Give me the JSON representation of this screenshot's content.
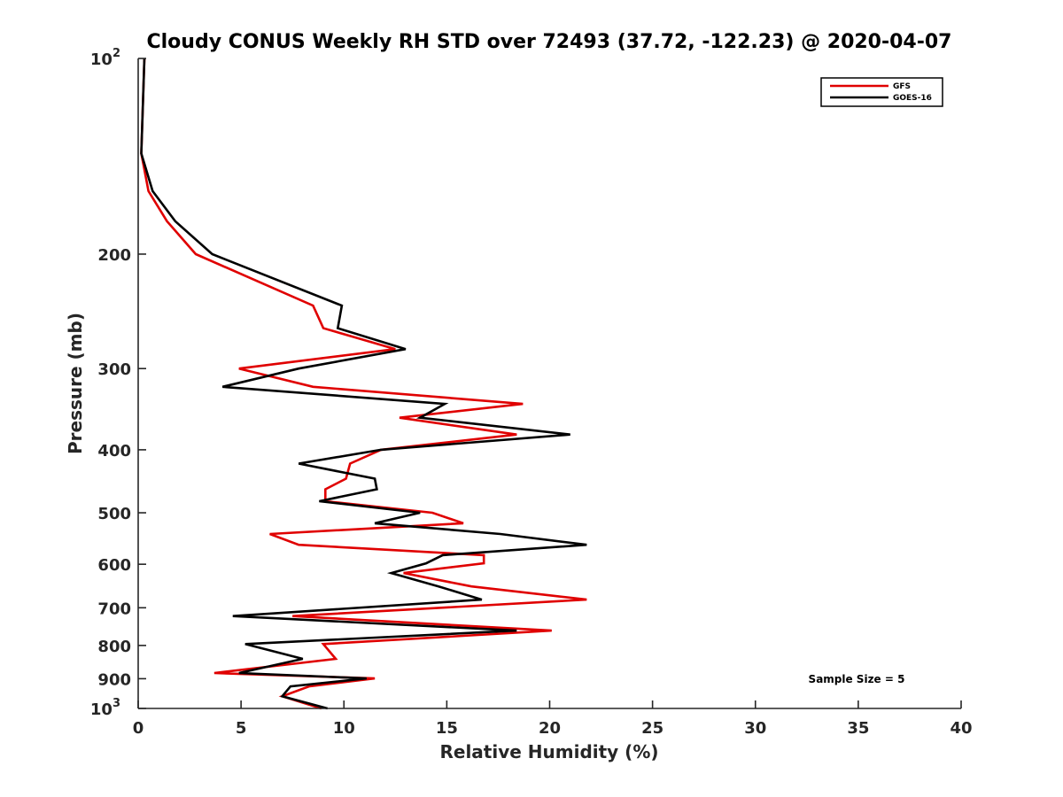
{
  "chart_data": {
    "type": "line",
    "title": "Cloudy CONUS Weekly RH STD over 72493 (37.72, -122.23) @ 2020-04-07",
    "xlabel": "Relative Humidity (%)",
    "ylabel": "Pressure (mb)",
    "xlim": [
      0,
      40
    ],
    "ylim": [
      100,
      1000
    ],
    "yscale": "log",
    "yaxis_reversed": true,
    "grid": false,
    "xticks": [
      0,
      5,
      10,
      15,
      20,
      25,
      30,
      35,
      40
    ],
    "xtick_labels": [
      "0",
      "5",
      "10",
      "15",
      "20",
      "25",
      "30",
      "35",
      "40"
    ],
    "yticks": [
      100,
      200,
      300,
      400,
      500,
      600,
      700,
      800,
      900,
      1000
    ],
    "ytick_labels": [
      {
        "base": "10",
        "sup": "2"
      },
      {
        "base": "200",
        "sup": ""
      },
      {
        "base": "300",
        "sup": ""
      },
      {
        "base": "400",
        "sup": ""
      },
      {
        "base": "500",
        "sup": ""
      },
      {
        "base": "600",
        "sup": ""
      },
      {
        "base": "700",
        "sup": ""
      },
      {
        "base": "800",
        "sup": ""
      },
      {
        "base": "900",
        "sup": ""
      },
      {
        "base": "10",
        "sup": "3"
      }
    ],
    "legend_placement": "top-right",
    "annotation": "Sample Size = 5",
    "series": [
      {
        "name": "GFS",
        "color": "#e00000",
        "pressure": [
          100,
          140,
          160,
          178,
          200,
          240,
          260,
          280,
          300,
          320,
          340,
          357,
          379,
          400,
          420,
          443,
          460,
          480,
          500,
          519,
          539,
          560,
          581,
          598,
          619,
          649,
          680,
          721,
          759,
          796,
          839,
          882,
          899,
          925,
          958,
          1000
        ],
        "values": [
          0.3,
          0.15,
          0.5,
          1.4,
          2.8,
          8.5,
          9.0,
          12.5,
          4.9,
          8.5,
          18.7,
          12.7,
          18.4,
          11.8,
          10.3,
          10.1,
          9.1,
          9.1,
          14.3,
          15.8,
          6.4,
          7.8,
          16.8,
          16.8,
          12.9,
          16.2,
          21.8,
          7.5,
          20.1,
          9.0,
          9.6,
          3.7,
          11.5,
          8.3,
          7.0,
          8.9
        ]
      },
      {
        "name": "GOES-16",
        "color": "#000000",
        "pressure": [
          100,
          140,
          160,
          178,
          200,
          240,
          260,
          280,
          300,
          320,
          340,
          357,
          379,
          400,
          420,
          443,
          460,
          480,
          500,
          519,
          539,
          560,
          581,
          598,
          619,
          649,
          680,
          721,
          759,
          796,
          839,
          882,
          899,
          925,
          958,
          1000
        ],
        "values": [
          0.3,
          0.15,
          0.7,
          1.8,
          3.6,
          9.9,
          9.7,
          13.0,
          7.8,
          4.1,
          14.9,
          13.7,
          21.0,
          11.8,
          7.8,
          11.5,
          11.6,
          8.8,
          13.7,
          11.5,
          17.6,
          21.8,
          14.8,
          14.0,
          12.3,
          14.6,
          16.7,
          4.6,
          18.4,
          5.2,
          8.0,
          4.9,
          11.1,
          7.4,
          7.0,
          9.2
        ]
      }
    ]
  }
}
